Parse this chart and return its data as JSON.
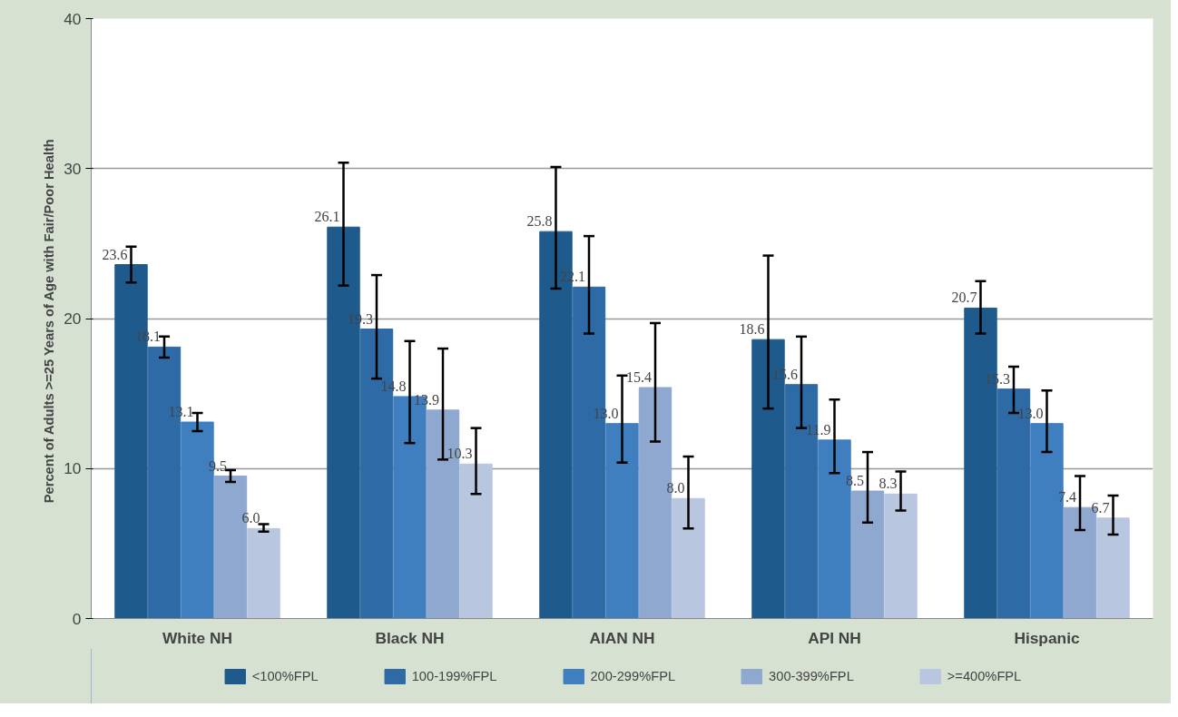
{
  "chart_data": {
    "type": "bar",
    "ylabel": "Percent of Adults >=25 Years of Age with Fair/Poor  Health",
    "categories": [
      "White NH",
      "Black NH",
      "AIAN NH",
      "API NH",
      "Hispanic"
    ],
    "series": [
      {
        "name": "<100%FPL",
        "color": "#1f5a8c",
        "values": [
          23.6,
          26.1,
          25.8,
          18.6,
          20.7
        ],
        "value_labels": [
          "23.6",
          "26.1",
          "25.8",
          "18.6",
          "20.7"
        ],
        "errors": [
          [
            22.4,
            24.8
          ],
          [
            22.2,
            30.4
          ],
          [
            22.0,
            30.1
          ],
          [
            14.0,
            24.2
          ],
          [
            19.0,
            22.5
          ]
        ]
      },
      {
        "name": "100-199%FPL",
        "color": "#2e6aa6",
        "values": [
          18.1,
          19.3,
          22.1,
          15.6,
          15.3
        ],
        "value_labels": [
          "18.1",
          "19.3",
          "22.1",
          "15.6",
          "15.3"
        ],
        "errors": [
          [
            17.4,
            18.8
          ],
          [
            16.0,
            22.9
          ],
          [
            19.0,
            25.5
          ],
          [
            12.7,
            18.8
          ],
          [
            13.7,
            16.8
          ]
        ]
      },
      {
        "name": "200-299%FPL",
        "color": "#3f7fc0",
        "values": [
          13.1,
          14.8,
          13.0,
          11.9,
          13.0
        ],
        "value_labels": [
          "13.1",
          "14.8",
          "13.0",
          "11.9",
          "13.0"
        ],
        "errors": [
          [
            12.5,
            13.7
          ],
          [
            11.7,
            18.5
          ],
          [
            10.4,
            16.2
          ],
          [
            9.7,
            14.6
          ],
          [
            11.1,
            15.2
          ]
        ]
      },
      {
        "name": "300-399%FPL",
        "color": "#8fa8cf",
        "values": [
          9.5,
          13.9,
          15.4,
          8.5,
          7.4
        ],
        "value_labels": [
          "9.5",
          "13.9",
          "15.4",
          "8.5",
          "7.4"
        ],
        "errors": [
          [
            9.1,
            9.9
          ],
          [
            10.6,
            18.0
          ],
          [
            11.8,
            19.7
          ],
          [
            6.4,
            11.1
          ],
          [
            5.9,
            9.5
          ]
        ]
      },
      {
        "name": ">=400%FPL",
        "color": "#b8c6e0",
        "values": [
          6.0,
          10.3,
          8.0,
          8.3,
          6.7
        ],
        "value_labels": [
          "6.0",
          "10.3",
          "8.0",
          "8.3",
          "6.7"
        ],
        "errors": [
          [
            5.8,
            6.3
          ],
          [
            8.3,
            12.7
          ],
          [
            6.0,
            10.8
          ],
          [
            7.2,
            9.8
          ],
          [
            5.6,
            8.2
          ]
        ]
      }
    ],
    "ylim": [
      0,
      40
    ],
    "yticks": [
      0,
      10,
      20,
      30,
      40
    ],
    "grid": "y",
    "legend": "bottom",
    "data_labels": true
  }
}
